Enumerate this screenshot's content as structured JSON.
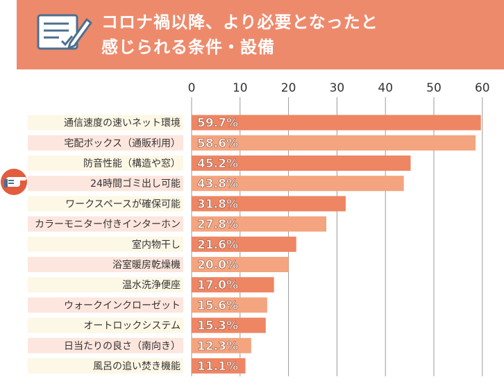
{
  "header": {
    "title_line1": "コロナ禍以降、より必要となったと",
    "title_line2": "感じられる条件・設備",
    "icon": "checklist-pen-icon"
  },
  "side_icon": "pointing-hand-icon",
  "colors": {
    "header_bg": "#ee8a6c",
    "bar_dark": "#ee8563",
    "bar_light": "#f4a47f",
    "label_bg_yellow": "#fdf8e6",
    "label_bg_pink": "#fde6de",
    "grid": "#9a9a9a"
  },
  "chart_data": {
    "type": "bar",
    "orientation": "horizontal",
    "categories": [
      "通信速度の速いネット環境",
      "宅配ボックス（通販利用）",
      "防音性能（構造や窓）",
      "24時間ゴミ出し可能",
      "ワークスペースが確保可能",
      "カラーモニター付きインターホン",
      "室内物干し",
      "浴室暖房乾燥機",
      "温水洗浄便座",
      "ウォークインクローゼット",
      "オートロックシステム",
      "日当たりの良さ（南向き）",
      "風呂の追い焚き機能"
    ],
    "values": [
      59.7,
      58.6,
      45.2,
      43.8,
      31.8,
      27.8,
      21.6,
      20.0,
      17.0,
      15.6,
      15.3,
      12.3,
      11.1
    ],
    "data_labels": [
      "59.7%",
      "58.6%",
      "45.2%",
      "43.8%",
      "31.8%",
      "27.8%",
      "21.6%",
      "20.0%",
      "17.0%",
      "15.6%",
      "15.3%",
      "12.3%",
      "11.1%"
    ],
    "x_ticks": [
      0,
      10,
      20,
      30,
      40,
      50,
      60
    ],
    "xlim": [
      0,
      60
    ],
    "grid": true,
    "axis_position": "top",
    "title": "",
    "xlabel": "",
    "ylabel": ""
  }
}
